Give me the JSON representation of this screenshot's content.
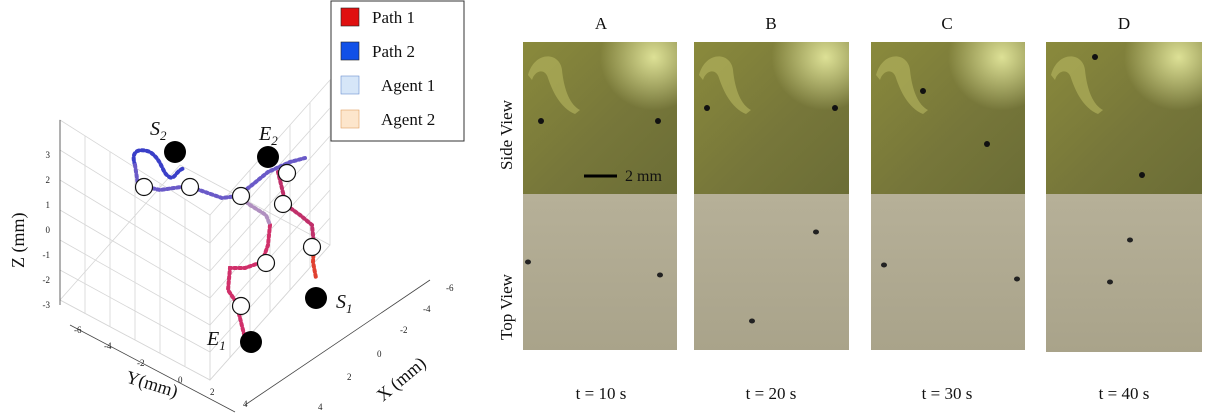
{
  "plot3d": {
    "axes": {
      "x_label": "X (mm)",
      "y_label": "Y(mm)",
      "z_label": "Z (mm)",
      "x_ticks": [
        "-6",
        "-4",
        "-2",
        "0",
        "2",
        "4"
      ],
      "y_ticks": [
        "-6",
        "-4",
        "-2",
        "0",
        "2",
        "4"
      ],
      "z_ticks": [
        "-3",
        "-2",
        "-1",
        "0",
        "1",
        "2",
        "3"
      ]
    },
    "legend": {
      "placement": "top-right",
      "entries": [
        {
          "label": "Path 1",
          "color": "#e01010"
        },
        {
          "label": "Path 2",
          "color": "#1050e8"
        },
        {
          "label": "Agent 1",
          "color": "#d6e6f8"
        },
        {
          "label": "Agent 2",
          "color": "#fde6cc"
        }
      ]
    },
    "markers": [
      {
        "name": "S",
        "sub": "2"
      },
      {
        "name": "E",
        "sub": "2"
      },
      {
        "name": "S",
        "sub": "1"
      },
      {
        "name": "E",
        "sub": "1"
      }
    ]
  },
  "photos": {
    "columns": [
      {
        "letter": "A",
        "time": "t = 10 s"
      },
      {
        "letter": "B",
        "time": "t = 20 s"
      },
      {
        "letter": "C",
        "time": "t = 30 s"
      },
      {
        "letter": "D",
        "time": "t = 40 s"
      }
    ],
    "row_labels": {
      "side": "Side View",
      "top": "Top View"
    },
    "scale_bar_label": "2 mm",
    "colors": {
      "side_view": "#7b7a3c",
      "top_view": "#b3ad92"
    }
  }
}
